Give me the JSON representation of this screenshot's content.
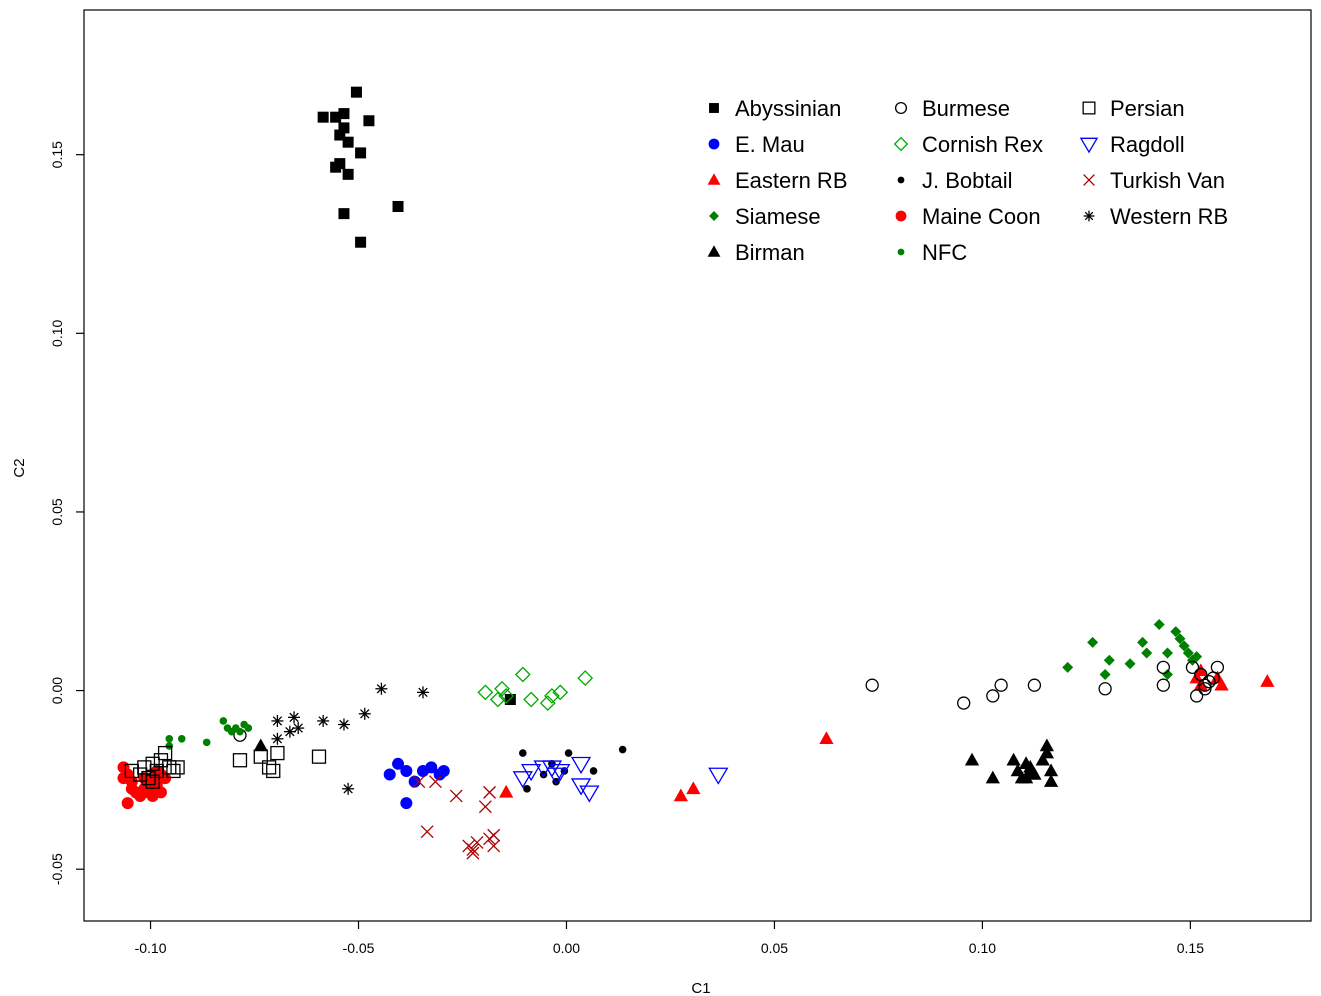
{
  "chart_data": {
    "type": "scatter",
    "title": "",
    "xlabel": "C1",
    "ylabel": "C2",
    "xlim": [
      -0.116,
      0.179
    ],
    "ylim": [
      -0.0645,
      0.1905
    ],
    "xticks": [
      -0.1,
      -0.05,
      0.0,
      0.05,
      0.1,
      0.15
    ],
    "xtick_labels": [
      "-0.10",
      "-0.05",
      "0.00",
      "0.05",
      "0.10",
      "0.15"
    ],
    "yticks": [
      -0.05,
      0.0,
      0.05,
      0.1,
      0.15
    ],
    "ytick_labels": [
      "-0.05",
      "0.00",
      "0.05",
      "0.10",
      "0.15"
    ],
    "grid": false,
    "legend_position": "top-right",
    "series": [
      {
        "name": "Abyssinian",
        "marker": "filled-square",
        "color": "#000000",
        "points": [
          [
            -0.0505,
            0.1675
          ],
          [
            -0.0535,
            0.1615
          ],
          [
            -0.0555,
            0.1605
          ],
          [
            -0.0585,
            0.1605
          ],
          [
            -0.0475,
            0.1595
          ],
          [
            -0.0535,
            0.1575
          ],
          [
            -0.0545,
            0.1555
          ],
          [
            -0.0525,
            0.1535
          ],
          [
            -0.0495,
            0.1505
          ],
          [
            -0.0545,
            0.1475
          ],
          [
            -0.0555,
            0.1465
          ],
          [
            -0.0525,
            0.1445
          ],
          [
            -0.0405,
            0.1355
          ],
          [
            -0.0535,
            0.1335
          ],
          [
            -0.0495,
            0.1255
          ],
          [
            -0.0135,
            -0.0025
          ]
        ]
      },
      {
        "name": "E. Mau",
        "marker": "filled-circle",
        "color": "#0000ff",
        "points": [
          [
            -0.0405,
            -0.0205
          ],
          [
            -0.0425,
            -0.0235
          ],
          [
            -0.0385,
            -0.0225
          ],
          [
            -0.0365,
            -0.0255
          ],
          [
            -0.0345,
            -0.0225
          ],
          [
            -0.0325,
            -0.0215
          ],
          [
            -0.0305,
            -0.0235
          ],
          [
            -0.0295,
            -0.0225
          ],
          [
            -0.0385,
            -0.0315
          ]
        ]
      },
      {
        "name": "Eastern RB",
        "marker": "filled-triangle",
        "color": "#ff0000",
        "points": [
          [
            -0.0145,
            -0.0285
          ],
          [
            0.0275,
            -0.0295
          ],
          [
            0.0305,
            -0.0275
          ],
          [
            0.0625,
            -0.0135
          ],
          [
            0.1515,
            0.0035
          ],
          [
            0.1525,
            0.0015
          ],
          [
            0.1565,
            0.0035
          ],
          [
            0.1575,
            0.0015
          ],
          [
            0.1685,
            0.0025
          ],
          [
            0.1525,
            0.0055
          ]
        ]
      },
      {
        "name": "Siamese",
        "marker": "filled-diamond",
        "color": "#008000",
        "points": [
          [
            0.1205,
            0.0065
          ],
          [
            0.1265,
            0.0135
          ],
          [
            0.1295,
            0.0045
          ],
          [
            0.1305,
            0.0085
          ],
          [
            0.1355,
            0.0075
          ],
          [
            0.1385,
            0.0135
          ],
          [
            0.1395,
            0.0105
          ],
          [
            0.1425,
            0.0185
          ],
          [
            0.1445,
            0.0045
          ],
          [
            0.1445,
            0.0105
          ],
          [
            0.1465,
            0.0165
          ],
          [
            0.1475,
            0.0145
          ],
          [
            0.1485,
            0.0125
          ],
          [
            0.1495,
            0.0105
          ],
          [
            0.1515,
            0.0095
          ],
          [
            0.1505,
            0.0085
          ]
        ]
      },
      {
        "name": "Birman",
        "marker": "filled-triangle",
        "color": "#000000",
        "points": [
          [
            -0.0735,
            -0.0155
          ],
          [
            0.0975,
            -0.0195
          ],
          [
            0.1025,
            -0.0245
          ],
          [
            0.1075,
            -0.0195
          ],
          [
            0.1085,
            -0.0225
          ],
          [
            0.1095,
            -0.0245
          ],
          [
            0.1105,
            -0.0205
          ],
          [
            0.1115,
            -0.0225
          ],
          [
            0.1125,
            -0.0235
          ],
          [
            0.1145,
            -0.0195
          ],
          [
            0.1155,
            -0.0175
          ],
          [
            0.1165,
            -0.0225
          ],
          [
            0.1165,
            -0.0255
          ],
          [
            0.1115,
            -0.0215
          ],
          [
            0.1105,
            -0.0245
          ],
          [
            0.1155,
            -0.0155
          ]
        ]
      },
      {
        "name": "Burmese",
        "marker": "open-circle",
        "color": "#000000",
        "points": [
          [
            -0.0785,
            -0.0125
          ],
          [
            0.0735,
            0.0015
          ],
          [
            0.0955,
            -0.0035
          ],
          [
            0.1025,
            -0.0015
          ],
          [
            0.1045,
            0.0015
          ],
          [
            0.1125,
            0.0015
          ],
          [
            0.1295,
            0.0005
          ],
          [
            0.1435,
            0.0015
          ],
          [
            0.1435,
            0.0065
          ],
          [
            0.1505,
            0.0065
          ],
          [
            0.1525,
            0.0045
          ],
          [
            0.1535,
            0.0015
          ],
          [
            0.1555,
            0.0035
          ],
          [
            0.1565,
            0.0065
          ],
          [
            0.1545,
            0.0025
          ],
          [
            0.1535,
            0.0005
          ],
          [
            0.1515,
            -0.0015
          ]
        ]
      },
      {
        "name": "Cornish Rex",
        "marker": "open-diamond",
        "color": "#00aa00",
        "points": [
          [
            -0.0195,
            -0.0005
          ],
          [
            -0.0165,
            -0.0025
          ],
          [
            -0.0155,
            0.0005
          ],
          [
            -0.0145,
            -0.0015
          ],
          [
            -0.0105,
            0.0045
          ],
          [
            -0.0085,
            -0.0025
          ],
          [
            -0.0045,
            -0.0035
          ],
          [
            -0.0035,
            -0.0015
          ],
          [
            -0.0015,
            -0.0005
          ],
          [
            0.0045,
            0.0035
          ]
        ]
      },
      {
        "name": "J. Bobtail",
        "marker": "small-filled-circle",
        "color": "#000000",
        "points": [
          [
            -0.0105,
            -0.0175
          ],
          [
            -0.0095,
            -0.0275
          ],
          [
            -0.0055,
            -0.0235
          ],
          [
            -0.0035,
            -0.0205
          ],
          [
            -0.0025,
            -0.0255
          ],
          [
            -0.0005,
            -0.0225
          ],
          [
            0.0005,
            -0.0175
          ],
          [
            0.0065,
            -0.0225
          ],
          [
            0.0135,
            -0.0165
          ]
        ]
      },
      {
        "name": "Maine Coon",
        "marker": "filled-circle",
        "color": "#ff0000",
        "points": [
          [
            -0.1065,
            -0.0215
          ],
          [
            -0.1055,
            -0.0235
          ],
          [
            -0.1045,
            -0.0255
          ],
          [
            -0.1035,
            -0.0285
          ],
          [
            -0.1025,
            -0.0295
          ],
          [
            -0.1015,
            -0.0275
          ],
          [
            -0.1005,
            -0.0285
          ],
          [
            -0.0995,
            -0.0255
          ],
          [
            -0.0985,
            -0.0265
          ],
          [
            -0.0975,
            -0.0235
          ],
          [
            -0.0965,
            -0.0245
          ],
          [
            -0.0975,
            -0.0285
          ],
          [
            -0.1055,
            -0.0315
          ],
          [
            -0.1045,
            -0.0275
          ],
          [
            -0.1015,
            -0.0245
          ],
          [
            -0.0995,
            -0.0295
          ],
          [
            -0.0985,
            -0.0225
          ],
          [
            -0.1065,
            -0.0245
          ]
        ]
      },
      {
        "name": "NFC",
        "marker": "small-filled-circle",
        "color": "#008000",
        "points": [
          [
            -0.0955,
            -0.0135
          ],
          [
            -0.0925,
            -0.0135
          ],
          [
            -0.0865,
            -0.0145
          ],
          [
            -0.0825,
            -0.0085
          ],
          [
            -0.0815,
            -0.0105
          ],
          [
            -0.0805,
            -0.0115
          ],
          [
            -0.0795,
            -0.0105
          ],
          [
            -0.0785,
            -0.0115
          ],
          [
            -0.0775,
            -0.0095
          ],
          [
            -0.0765,
            -0.0105
          ],
          [
            -0.0955,
            -0.0155
          ]
        ]
      },
      {
        "name": "Persian",
        "marker": "open-square",
        "color": "#000000",
        "points": [
          [
            -0.1045,
            -0.0225
          ],
          [
            -0.1025,
            -0.0235
          ],
          [
            -0.1015,
            -0.0215
          ],
          [
            -0.1005,
            -0.0245
          ],
          [
            -0.0995,
            -0.0205
          ],
          [
            -0.0985,
            -0.0225
          ],
          [
            -0.0975,
            -0.0195
          ],
          [
            -0.0965,
            -0.0175
          ],
          [
            -0.0955,
            -0.0215
          ],
          [
            -0.0945,
            -0.0225
          ],
          [
            -0.0935,
            -0.0215
          ],
          [
            -0.0995,
            -0.0255
          ],
          [
            -0.0785,
            -0.0195
          ],
          [
            -0.0735,
            -0.0185
          ],
          [
            -0.0715,
            -0.0215
          ],
          [
            -0.0705,
            -0.0225
          ],
          [
            -0.0695,
            -0.0175
          ],
          [
            -0.0595,
            -0.0185
          ]
        ]
      },
      {
        "name": "Ragdoll",
        "marker": "open-triangle-down",
        "color": "#0000ff",
        "points": [
          [
            -0.0105,
            -0.0245
          ],
          [
            -0.0085,
            -0.0225
          ],
          [
            -0.0055,
            -0.0215
          ],
          [
            -0.0035,
            -0.0215
          ],
          [
            -0.0025,
            -0.0235
          ],
          [
            -0.0015,
            -0.0225
          ],
          [
            0.0035,
            -0.0205
          ],
          [
            0.0035,
            -0.0265
          ],
          [
            0.0055,
            -0.0285
          ],
          [
            0.0365,
            -0.0235
          ]
        ]
      },
      {
        "name": "Turkish Van",
        "marker": "x",
        "color": "#aa0000",
        "points": [
          [
            -0.0355,
            -0.0255
          ],
          [
            -0.0315,
            -0.0255
          ],
          [
            -0.0335,
            -0.0395
          ],
          [
            -0.0265,
            -0.0295
          ],
          [
            -0.0185,
            -0.0285
          ],
          [
            -0.0195,
            -0.0325
          ],
          [
            -0.0235,
            -0.0435
          ],
          [
            -0.0225,
            -0.0455
          ],
          [
            -0.0215,
            -0.0425
          ],
          [
            -0.0185,
            -0.0415
          ],
          [
            -0.0175,
            -0.0405
          ],
          [
            -0.0175,
            -0.0435
          ],
          [
            -0.0225,
            -0.0445
          ]
        ]
      },
      {
        "name": "Western RB",
        "marker": "asterisk",
        "color": "#000000",
        "points": [
          [
            -0.0695,
            -0.0085
          ],
          [
            -0.0665,
            -0.0115
          ],
          [
            -0.0655,
            -0.0075
          ],
          [
            -0.0645,
            -0.0105
          ],
          [
            -0.0585,
            -0.0085
          ],
          [
            -0.0535,
            -0.0095
          ],
          [
            -0.0485,
            -0.0065
          ],
          [
            -0.0445,
            0.0005
          ],
          [
            -0.0345,
            -0.0005
          ],
          [
            -0.0525,
            -0.0275
          ],
          [
            -0.0695,
            -0.0135
          ]
        ]
      }
    ]
  }
}
